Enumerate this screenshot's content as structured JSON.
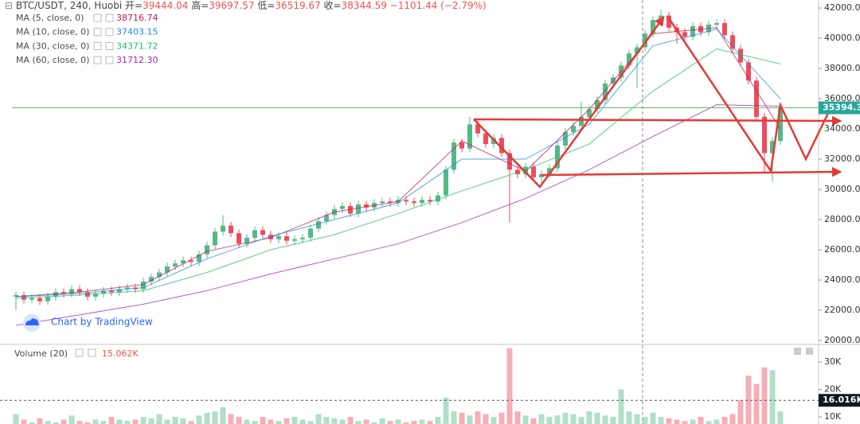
{
  "header": {
    "symbol": "BTC/USDT, 240, Huobi",
    "ohlc": [
      {
        "label": "开=",
        "value": 39444.04
      },
      {
        "label": "高=",
        "value": 39697.57
      },
      {
        "label": "低=",
        "value": 36519.67
      },
      {
        "label": "收=",
        "value": 38344.59
      }
    ],
    "change": "−1101.44 (−2.79%)"
  },
  "chart_data": {
    "type": "candlestick",
    "up_color": "#53b987",
    "down_color": "#eb4d5c",
    "ylim": [
      19790,
      42530
    ],
    "yticks": [
      {
        "value": 20000,
        "label": "20000.00"
      },
      {
        "value": 22000,
        "label": "22000.00"
      },
      {
        "value": 24000,
        "label": "24000.00"
      },
      {
        "value": 26000,
        "label": "26000.00"
      },
      {
        "value": 28000,
        "label": "28000.00"
      },
      {
        "value": 30000,
        "label": "30000.00"
      },
      {
        "value": 32000,
        "label": "32000.00"
      },
      {
        "value": 34000,
        "label": "34000.00"
      },
      {
        "value": 36000,
        "label": "36000.00"
      },
      {
        "value": 38000,
        "label": "38000.00"
      },
      {
        "value": 40000,
        "label": "40000.00"
      },
      {
        "value": 42000,
        "label": "42000.00"
      }
    ],
    "last_price": 35394.36,
    "watermark": "Chart by TradingView",
    "open": [
      22900,
      23000,
      22700,
      22800,
      22600,
      22900,
      23200,
      23100,
      23400,
      23200,
      22900,
      23100,
      23300,
      23200,
      23400,
      23500,
      23400,
      23900,
      24200,
      24500,
      24900,
      25100,
      25300,
      25200,
      25700,
      26300,
      27200,
      27600,
      27100,
      26400,
      26800,
      27300,
      27000,
      26700,
      26900,
      26600,
      26700,
      26800,
      27400,
      27900,
      28300,
      28700,
      28900,
      28400,
      29000,
      28800,
      29100,
      29200,
      29100,
      29300,
      29200,
      29100,
      29300,
      29200,
      29600,
      31300,
      33100,
      32700,
      34300,
      33700,
      33000,
      33400,
      32400,
      31300,
      31000,
      31500,
      30800,
      31000,
      31400,
      32900,
      33800,
      34200,
      34800,
      35300,
      35900,
      37000,
      37400,
      38200,
      39000,
      39400,
      40300,
      41200,
      41500,
      40700,
      40400,
      40100,
      40800,
      40400,
      40900,
      41000,
      40200,
      39300,
      38400,
      37200,
      34800,
      32400,
      33200
    ],
    "high": [
      23250,
      23250,
      23050,
      23050,
      23150,
      23450,
      23450,
      23650,
      23650,
      23450,
      23350,
      23550,
      23550,
      23650,
      23750,
      23750,
      24150,
      24450,
      24750,
      25150,
      25350,
      25550,
      25550,
      25950,
      26550,
      27450,
      28300,
      27850,
      27350,
      27050,
      27550,
      27550,
      27250,
      27150,
      27150,
      26950,
      27050,
      27650,
      28150,
      28550,
      28950,
      29150,
      29150,
      29250,
      29250,
      29350,
      29450,
      29450,
      29550,
      29550,
      29450,
      29550,
      29550,
      29850,
      31550,
      33350,
      33350,
      34800,
      34550,
      33950,
      33650,
      33650,
      32650,
      31550,
      31750,
      31750,
      31250,
      31650,
      33150,
      34050,
      34450,
      35800,
      35550,
      36150,
      37250,
      37650,
      38450,
      39250,
      39650,
      40550,
      41450,
      41900,
      41750,
      40950,
      40650,
      41050,
      41050,
      41150,
      41250,
      41250,
      40450,
      39550,
      38650,
      37450,
      35050,
      33450,
      35700
    ],
    "low": [
      22000,
      22450,
      22450,
      22350,
      22350,
      22650,
      22850,
      22850,
      22950,
      22650,
      22650,
      22850,
      22950,
      22950,
      23150,
      23150,
      23150,
      23650,
      23950,
      24250,
      24650,
      24850,
      24950,
      24950,
      25450,
      26050,
      26950,
      26850,
      26150,
      26150,
      26550,
      26750,
      26450,
      26450,
      26350,
      26350,
      26450,
      26550,
      27150,
      27650,
      28050,
      28450,
      28150,
      28150,
      28550,
      28550,
      28850,
      28850,
      28850,
      28950,
      28850,
      28850,
      28950,
      28950,
      29350,
      31050,
      32450,
      32450,
      33450,
      32750,
      32750,
      32150,
      27800,
      30750,
      30750,
      30550,
      30350,
      30750,
      31150,
      32650,
      33550,
      33950,
      34550,
      35050,
      35650,
      36750,
      37150,
      37950,
      36700,
      39150,
      40050,
      40950,
      40450,
      39650,
      39850,
      39850,
      40150,
      40150,
      40650,
      39950,
      39050,
      38150,
      36950,
      34550,
      31100,
      30500,
      32950
    ],
    "close": [
      23000,
      22700,
      22800,
      22600,
      22900,
      23200,
      23100,
      23400,
      23200,
      22900,
      23100,
      23300,
      23200,
      23400,
      23500,
      23400,
      23900,
      24200,
      24500,
      24900,
      25100,
      25300,
      25200,
      25700,
      26300,
      27200,
      27600,
      27100,
      26400,
      26800,
      27300,
      27000,
      26700,
      26900,
      26600,
      26700,
      26800,
      27400,
      27900,
      28300,
      28700,
      28900,
      28400,
      29000,
      28800,
      29100,
      29200,
      29100,
      29300,
      29200,
      29100,
      29300,
      29200,
      29600,
      31300,
      33100,
      32700,
      34300,
      33700,
      33000,
      33400,
      32400,
      31300,
      31000,
      31500,
      30800,
      31000,
      31400,
      32900,
      33800,
      34200,
      34800,
      35300,
      35900,
      37000,
      37400,
      38200,
      39000,
      39400,
      40300,
      41200,
      41500,
      40700,
      40400,
      40100,
      40800,
      40400,
      40900,
      41000,
      40200,
      39300,
      38400,
      37200,
      34800,
      32400,
      33200,
      35400
    ],
    "ma_x": [
      0,
      8,
      16,
      24,
      32,
      40,
      48,
      56,
      64,
      72,
      80,
      88,
      96
    ],
    "ma": [
      {
        "name": "MA (5, close, 0)",
        "color": "#c2185b",
        "legend_value": 38716.74,
        "values": [
          22900,
          23200,
          23700,
          25900,
          26800,
          28500,
          29200,
          33200,
          31200,
          35300,
          40300,
          40700,
          34000
        ]
      },
      {
        "name": "MA (10, close, 0)",
        "color": "#1e88e5",
        "legend_value": 37403.15,
        "values": [
          22900,
          23100,
          23500,
          25400,
          26900,
          28000,
          29100,
          32000,
          32000,
          34300,
          39500,
          40600,
          36000
        ]
      },
      {
        "name": "MA (30, close, 0)",
        "color": "#21c25e",
        "legend_value": 34371.72,
        "values": [
          22800,
          23000,
          23300,
          24500,
          26000,
          27000,
          28400,
          29900,
          31300,
          33000,
          36500,
          39300,
          38300
        ]
      },
      {
        "name": "MA (60, close, 0)",
        "color": "#9c27b0",
        "legend_value": {
          "value": 31712.3,
          "label": "31712.30"
        },
        "values": [
          21000,
          21700,
          22400,
          23300,
          24400,
          25400,
          26400,
          27800,
          29400,
          31300,
          33500,
          35600,
          35500
        ]
      }
    ],
    "volume": {
      "type": "bar",
      "title": "Volume (20)",
      "legend_value": {
        "value": 15062,
        "label": "15.062K"
      },
      "ylim": [
        7400,
        35200
      ],
      "yticks": [
        {
          "value": 30000,
          "label": "30K"
        },
        {
          "value": 20000,
          "label": "20K"
        },
        {
          "value": 10000,
          "label": "10K"
        }
      ],
      "marker": {
        "value": 16016,
        "label": "16.016K"
      },
      "values": [
        11000,
        9000,
        8000,
        9500,
        8500,
        8000,
        9000,
        10500,
        8500,
        8000,
        9000,
        8500,
        10000,
        9000,
        8500,
        9000,
        10000,
        9500,
        11000,
        9000,
        10000,
        9500,
        8500,
        10500,
        11500,
        12000,
        13500,
        11000,
        10000,
        9000,
        8500,
        10000,
        9000,
        8500,
        9500,
        10000,
        9000,
        8500,
        11000,
        10000,
        9500,
        9000,
        10000,
        8500,
        9000,
        8000,
        9500,
        8500,
        9000,
        8000,
        8500,
        9000,
        8500,
        10000,
        17000,
        12000,
        11500,
        10500,
        12000,
        11000,
        10000,
        11500,
        35000,
        12000,
        10500,
        9500,
        11000,
        10000,
        10500,
        11500,
        11000,
        10000,
        12000,
        11500,
        10500,
        10000,
        20000,
        12000,
        11000,
        10000,
        11500,
        10000,
        9500,
        9000,
        8500,
        9000,
        10000,
        8500,
        9000,
        10000,
        11000,
        16000,
        25000,
        22000,
        28000,
        27000,
        12000
      ]
    }
  }
}
